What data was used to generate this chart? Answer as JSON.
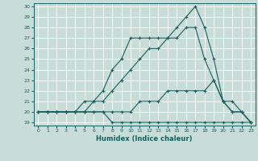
{
  "title": "",
  "xlabel": "Humidex (Indice chaleur)",
  "ylabel": "",
  "bg_color": "#c8ddd8",
  "line_color": "#1a5f5f",
  "xlim": [
    -0.5,
    23.5
  ],
  "ylim": [
    18.7,
    30.3
  ],
  "yticks": [
    19,
    20,
    21,
    22,
    23,
    24,
    25,
    26,
    27,
    28,
    29,
    30
  ],
  "xticks": [
    0,
    1,
    2,
    3,
    4,
    5,
    6,
    7,
    8,
    9,
    10,
    11,
    12,
    13,
    14,
    15,
    16,
    17,
    18,
    19,
    20,
    21,
    22,
    23
  ],
  "series": [
    {
      "x": [
        0,
        1,
        2,
        3,
        4,
        5,
        6,
        7,
        8,
        9,
        10,
        11,
        12,
        13,
        14,
        15,
        16,
        17,
        18,
        19,
        20,
        21,
        22,
        23
      ],
      "y": [
        20,
        20,
        20,
        20,
        20,
        20,
        20,
        20,
        19,
        19,
        19,
        19,
        19,
        19,
        19,
        19,
        19,
        19,
        19,
        19,
        19,
        19,
        19,
        19
      ]
    },
    {
      "x": [
        0,
        1,
        2,
        3,
        4,
        5,
        6,
        7,
        8,
        9,
        10,
        11,
        12,
        13,
        14,
        15,
        16,
        17,
        18,
        19,
        20,
        21,
        22,
        23
      ],
      "y": [
        20,
        20,
        20,
        20,
        20,
        20,
        20,
        20,
        20,
        20,
        20,
        21,
        21,
        21,
        22,
        22,
        22,
        22,
        22,
        23,
        21,
        20,
        20,
        19
      ]
    },
    {
      "x": [
        0,
        1,
        2,
        3,
        4,
        5,
        6,
        7,
        8,
        9,
        10,
        11,
        12,
        13,
        14,
        15,
        16,
        17,
        18,
        19,
        20,
        21,
        22,
        23
      ],
      "y": [
        20,
        20,
        20,
        20,
        20,
        21,
        21,
        21,
        22,
        23,
        24,
        25,
        26,
        26,
        27,
        27,
        28,
        28,
        25,
        23,
        21,
        21,
        20,
        19
      ]
    },
    {
      "x": [
        0,
        1,
        2,
        3,
        4,
        5,
        6,
        7,
        8,
        9,
        10,
        11,
        12,
        13,
        14,
        15,
        16,
        17,
        18,
        19,
        20,
        21,
        22,
        23
      ],
      "y": [
        20,
        20,
        20,
        20,
        20,
        20,
        21,
        22,
        24,
        25,
        27,
        27,
        27,
        27,
        27,
        28,
        29,
        30,
        28,
        25,
        21,
        20,
        20,
        19
      ]
    }
  ]
}
